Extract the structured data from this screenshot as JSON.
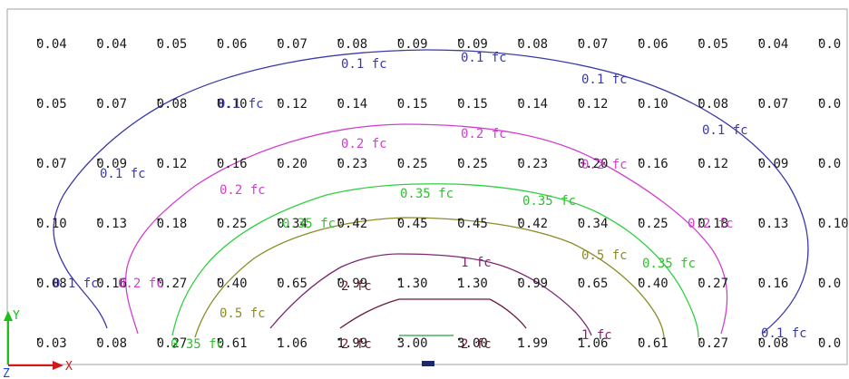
{
  "grid": {
    "rows": [
      [
        "0.04",
        "0.04",
        "0.05",
        "0.06",
        "0.07",
        "0.08",
        "0.09",
        "0.09",
        "0.08",
        "0.07",
        "0.06",
        "0.05",
        "0.04",
        "0.0"
      ],
      [
        "0.05",
        "0.07",
        "0.08",
        "0.10",
        "0.12",
        "0.14",
        "0.15",
        "0.15",
        "0.14",
        "0.12",
        "0.10",
        "0.08",
        "0.07",
        "0.0"
      ],
      [
        "0.07",
        "0.09",
        "0.12",
        "0.16",
        "0.20",
        "0.23",
        "0.25",
        "0.25",
        "0.23",
        "0.20",
        "0.16",
        "0.12",
        "0.09",
        "0.0"
      ],
      [
        "0.10",
        "0.13",
        "0.18",
        "0.25",
        "0.34",
        "0.42",
        "0.45",
        "0.45",
        "0.42",
        "0.34",
        "0.25",
        "0.18",
        "0.13",
        "0.10"
      ],
      [
        "0.08",
        "0.16",
        "0.27",
        "0.40",
        "0.65",
        "0.99",
        "1.30",
        "1.30",
        "0.99",
        "0.65",
        "0.40",
        "0.27",
        "0.16",
        "0.0"
      ],
      [
        "0.03",
        "0.08",
        "0.27",
        "0.61",
        "1.06",
        "1.99",
        "3.00",
        "3.00",
        "1.99",
        "1.06",
        "0.61",
        "0.27",
        "0.08",
        "0.0"
      ]
    ]
  },
  "contours": [
    {
      "level": "0.1 fc",
      "color": "#3a3aa8"
    },
    {
      "level": "0.2 fc",
      "color": "#d040d0"
    },
    {
      "level": "0.35 fc",
      "color": "#30d040"
    },
    {
      "level": "0.5 fc",
      "color": "#8c8c28"
    },
    {
      "level": "1 fc",
      "color": "#7a2870"
    },
    {
      "level": "2 fc",
      "color": "#6b1f2e"
    }
  ],
  "axes": {
    "x_label": "X",
    "y_label": "Y",
    "z_label": "Z",
    "x_color": "#d01818",
    "y_color": "#18c018",
    "z_color": "#1848d0"
  }
}
